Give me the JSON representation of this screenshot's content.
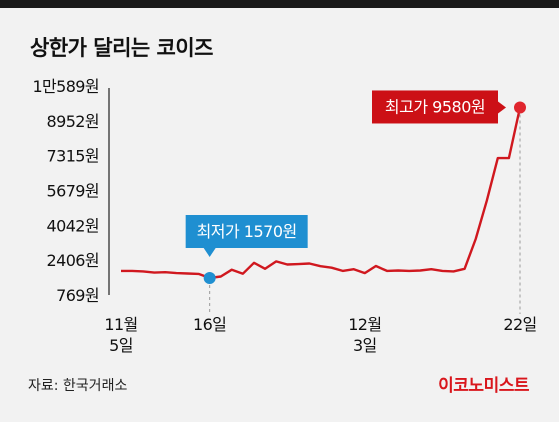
{
  "title": "상한가 달리는 코이즈",
  "source": "자료: 한국거래소",
  "brand": "이코노미스트",
  "colors": {
    "line": "#d0181f",
    "low_marker": "#1f8fd1",
    "high_marker": "#e0262e",
    "low_callout": "#1f8fd1",
    "high_callout": "#cc1016"
  },
  "chart_data": {
    "type": "line",
    "title": "상한가 달리는 코이즈",
    "xlabel": "",
    "ylabel": "",
    "y_ticks": [
      10589,
      8952,
      7315,
      5679,
      4042,
      2406,
      769
    ],
    "y_tick_labels": [
      "1만589원",
      "8952원",
      "7315원",
      "5679원",
      "4042원",
      "2406원",
      "769원"
    ],
    "ylim": [
      769,
      10589
    ],
    "x_ticks": [
      {
        "index": 0,
        "label": [
          "11월",
          "5일"
        ]
      },
      {
        "index": 8,
        "label": [
          "16일"
        ]
      },
      {
        "index": 22,
        "label": [
          "12월",
          "3일"
        ]
      },
      {
        "index": 36,
        "label": [
          "22일"
        ]
      }
    ],
    "x_count": 37,
    "series": [
      {
        "values": [
          1900,
          1900,
          1880,
          1820,
          1840,
          1800,
          1780,
          1760,
          1570,
          1640,
          1960,
          1770,
          2280,
          2000,
          2350,
          2200,
          2220,
          2250,
          2120,
          2050,
          1900,
          1980,
          1800,
          2130,
          1900,
          1920,
          1900,
          1920,
          1980,
          1900,
          1880,
          2000,
          3400,
          5200,
          7200,
          7200,
          9580
        ]
      }
    ],
    "annotations": [
      {
        "label": "최저가 1570원",
        "index": 8,
        "value": 1570,
        "kind": "low"
      },
      {
        "label": "최고가 9580원",
        "index": 36,
        "value": 9580,
        "kind": "high"
      }
    ],
    "grid": false,
    "legend": "none"
  }
}
